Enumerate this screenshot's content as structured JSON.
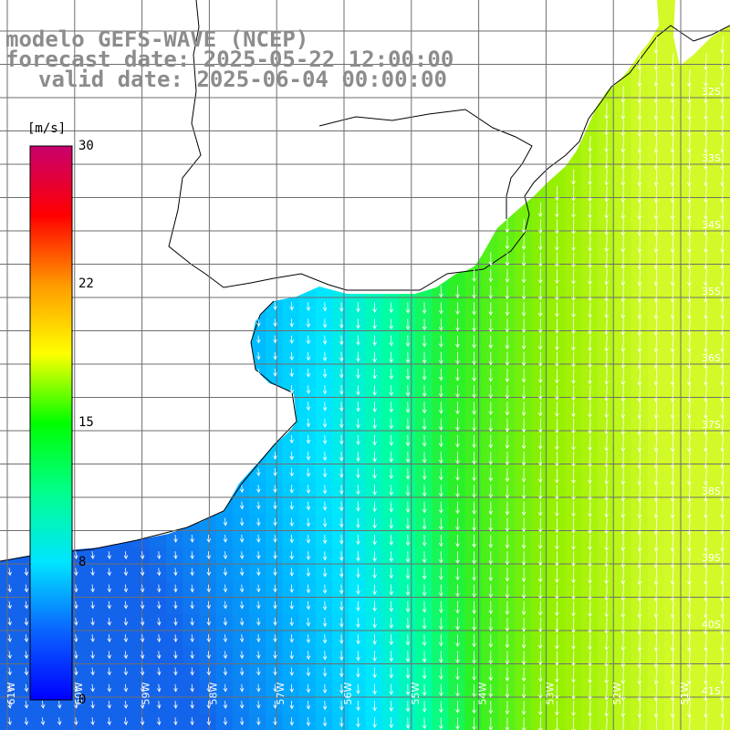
{
  "title": {
    "model": "modelo GEFS-WAVE (NCEP)",
    "forecast": "forecast date: 2025-05-22 12:00:00",
    "valid": "valid date: 2025-06-04 00:00:00"
  },
  "colorbar": {
    "unit": "[m/s]",
    "ticks": [
      "30",
      "22",
      "15",
      "8",
      "0"
    ],
    "colors": [
      "#0000ff",
      "#0a64ff",
      "#00e6ff",
      "#00ff8c",
      "#00ff00",
      "#ffff00",
      "#ff9900",
      "#ff0000",
      "#c8006e"
    ]
  },
  "grid": {
    "lat_labels": [
      "32S",
      "33S",
      "34S",
      "35S",
      "36S",
      "37S",
      "38S",
      "39S",
      "40S",
      "41S"
    ],
    "lon_labels": [
      "61W",
      "60W",
      "59W",
      "58W",
      "57W",
      "56W",
      "55W",
      "54W",
      "53W",
      "52W",
      "51W"
    ]
  },
  "colors": {
    "land": "#ffffff",
    "coast": "#000000",
    "grid": "#707070",
    "arrow": "#ffffff"
  }
}
